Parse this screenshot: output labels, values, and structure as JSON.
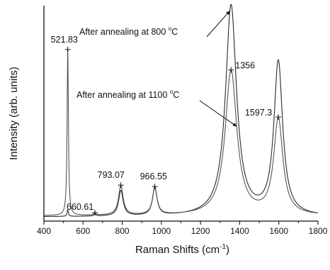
{
  "chart_data": {
    "type": "line",
    "xlabel": "Raman Shifts (cm",
    "xlabel_sup": "-1",
    "xlabel_tail": ")",
    "ylabel": "Intensity (arb. units)",
    "xlim": [
      400,
      1800
    ],
    "x_ticks": [
      400,
      600,
      800,
      1000,
      1200,
      1400,
      1600,
      1800
    ],
    "y_tick_labels": "none",
    "grid": false,
    "series": [
      {
        "name": "After annealing at 800 °C",
        "color": "#2a2a2a",
        "peaks": [
          {
            "x": 521.83,
            "height": 0.03,
            "width": 4
          },
          {
            "x": 660.61,
            "height": 0.01,
            "width": 6
          },
          {
            "x": 793.07,
            "height": 0.12,
            "width": 14
          },
          {
            "x": 966.55,
            "height": 0.13,
            "width": 14
          },
          {
            "x": 1356,
            "height": 0.99,
            "width": 34
          },
          {
            "x": 1597.3,
            "height": 0.72,
            "width": 27
          }
        ],
        "baseline": 0.02
      },
      {
        "name": "After annealing at 1100 °C",
        "color": "#555555",
        "peaks": [
          {
            "x": 521.83,
            "height": 0.78,
            "width": 4
          },
          {
            "x": 660.61,
            "height": 0.01,
            "width": 6
          },
          {
            "x": 793.07,
            "height": 0.14,
            "width": 14
          },
          {
            "x": 966.55,
            "height": 0.13,
            "width": 14
          },
          {
            "x": 1356,
            "height": 0.68,
            "width": 36
          },
          {
            "x": 1597.3,
            "height": 0.45,
            "width": 28
          }
        ],
        "baseline": 0.025
      }
    ],
    "peak_labels": [
      {
        "x": 521.83,
        "text": "521.83"
      },
      {
        "x": 660.61,
        "text": "660.61"
      },
      {
        "x": 793.07,
        "text": "793.07"
      },
      {
        "x": 966.55,
        "text": "966.55"
      },
      {
        "x": 1356,
        "text": "1356"
      },
      {
        "x": 1597.3,
        "text": "1597.3"
      }
    ],
    "annotations": [
      {
        "text": "After annealing at 800 ",
        "unit": "C",
        "degree": "o",
        "target_series": 0,
        "target_x": 1350
      },
      {
        "text": "After annealing at 1100 ",
        "unit": "C",
        "degree": "o",
        "target_series": 1,
        "target_x": 1385
      }
    ]
  }
}
